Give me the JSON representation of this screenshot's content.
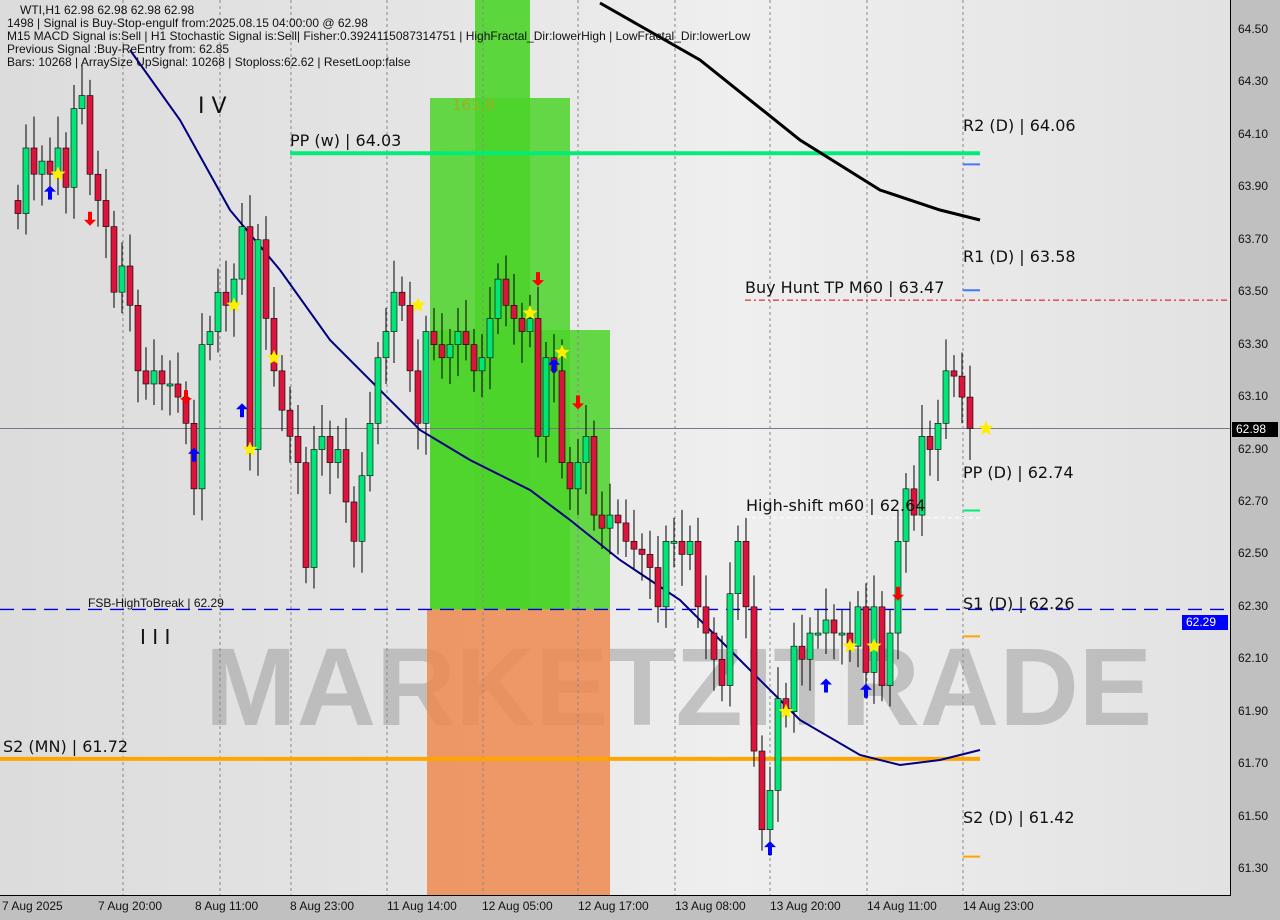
{
  "header": {
    "symbol_line": "WTI,H1  62.98 62.98 62.98 62.98",
    "line1": "1498 | Signal is Buy-Stop-engulf from:2025.08.15 04:00:00 @ 62.98",
    "line2": "M15 MACD Signal is:Sell | H1 Stochastic Signal is:Sell| Fisher:0.3924115087314751 | HighFractal_Dir:lowerHigh | LowFractal_Dir:lowerLow",
    "line3": "Previous Signal :Buy-ReEntry from: 62.85",
    "line4": "Bars: 10268 | ArraySize UpSignal: 10268 | Stoploss:62.62 | ResetLoop:false"
  },
  "levels": {
    "pp_w": {
      "label": "PP (w) | 64.03",
      "price": 64.03,
      "color": "#00ee77"
    },
    "s2_mn": {
      "label": "S2 (MN) | 61.72",
      "price": 61.72,
      "color": "#ffa500"
    },
    "fsb": {
      "label": "FSB-HighToBreak | 62.29",
      "price": 62.29,
      "color": "#0000dd"
    },
    "buy_hunt": {
      "label": "Buy Hunt TP M60 | 63.47",
      "price": 63.47,
      "color": "#dd0000"
    },
    "high_shift": {
      "label": "High-shift m60 | 62.64",
      "price": 62.64
    },
    "r2_d": {
      "label": "R2 (D) | 64.06",
      "price": 64.06
    },
    "r1_d": {
      "label": "R1 (D) | 63.58",
      "price": 63.58
    },
    "pp_d": {
      "label": "PP (D) | 62.74",
      "price": 62.74
    },
    "s1_d": {
      "label": "S1 (D) | 62.26",
      "price": 62.26
    },
    "s2_d": {
      "label": "S2 (D) | 61.42",
      "price": 61.42
    }
  },
  "labels": {
    "wave4": "I V",
    "wave3": "I I I",
    "fib": "161.8",
    "watermark": "MARKETZITRADE"
  },
  "price_tags": {
    "current": "62.98",
    "fsb": "62.29"
  },
  "colors": {
    "bull": "#00e676",
    "bear": "#dc143c",
    "ma": "#000080",
    "ma_long": "#000000",
    "zone_green": "#4cd42a",
    "zone_orange": "#f08a50"
  },
  "chart_data": {
    "type": "candlestick",
    "symbol": "WTI",
    "timeframe": "H1",
    "ylim": [
      61.2,
      64.6
    ],
    "yticks": [
      "64.50",
      "64.30",
      "64.10",
      "63.90",
      "63.70",
      "63.50",
      "63.30",
      "63.10",
      "62.90",
      "62.70",
      "62.50",
      "62.30",
      "62.10",
      "61.90",
      "61.70",
      "61.50",
      "61.30"
    ],
    "xticks": [
      "7 Aug 2025",
      "7 Aug 20:00",
      "8 Aug 11:00",
      "8 Aug 23:00",
      "11 Aug 14:00",
      "12 Aug 05:00",
      "12 Aug 17:00",
      "13 Aug 08:00",
      "13 Aug 20:00",
      "14 Aug 11:00",
      "14 Aug 23:00"
    ],
    "closes": [
      63.8,
      64.05,
      63.95,
      64.0,
      63.95,
      64.05,
      63.9,
      64.2,
      64.25,
      63.95,
      63.85,
      63.75,
      63.5,
      63.6,
      63.45,
      63.2,
      63.15,
      63.2,
      63.15,
      63.15,
      63.1,
      63.0,
      62.75,
      63.3,
      63.35,
      63.5,
      63.45,
      63.55,
      63.75,
      62.9,
      63.7,
      63.4,
      63.2,
      63.05,
      62.95,
      62.85,
      62.45,
      62.9,
      62.95,
      62.85,
      62.9,
      62.7,
      62.55,
      62.8,
      63.0,
      63.25,
      63.35,
      63.5,
      63.45,
      63.2,
      63.0,
      63.35,
      63.3,
      63.25,
      63.3,
      63.35,
      63.3,
      63.2,
      63.25,
      63.4,
      63.55,
      63.45,
      63.4,
      63.35,
      63.4,
      62.95,
      63.25,
      63.2,
      62.85,
      62.75,
      62.85,
      62.95,
      62.65,
      62.6,
      62.65,
      62.62,
      62.55,
      62.52,
      62.5,
      62.45,
      62.3,
      62.55,
      62.55,
      62.5,
      62.55,
      62.3,
      62.2,
      62.1,
      62.0,
      62.35,
      62.55,
      62.3,
      61.75,
      61.45,
      61.6,
      61.95,
      61.9,
      62.15,
      62.1,
      62.2,
      62.2,
      62.25,
      62.2,
      62.2,
      62.15,
      62.3,
      62.05,
      62.3,
      62.0,
      62.2,
      62.55,
      62.75,
      62.65,
      62.95,
      62.9,
      63.0,
      63.2,
      63.18,
      63.1,
      62.98
    ],
    "signals": [
      {
        "type": "star",
        "bar": 5,
        "price": 63.95
      },
      {
        "type": "up",
        "bar": 4,
        "price": 63.88
      },
      {
        "type": "down",
        "bar": 9,
        "price": 63.78
      },
      {
        "type": "star",
        "bar": 27,
        "price": 63.45
      },
      {
        "type": "star",
        "bar": 29,
        "price": 62.9
      },
      {
        "type": "star",
        "bar": 32,
        "price": 63.25
      },
      {
        "type": "up",
        "bar": 22,
        "price": 62.88
      },
      {
        "type": "up",
        "bar": 28,
        "price": 63.05
      },
      {
        "type": "down",
        "bar": 21,
        "price": 63.1
      },
      {
        "type": "star",
        "bar": 50,
        "price": 63.45
      },
      {
        "type": "star",
        "bar": 64,
        "price": 63.42
      },
      {
        "type": "star",
        "bar": 68,
        "price": 63.27
      },
      {
        "type": "down",
        "bar": 65,
        "price": 63.55
      },
      {
        "type": "up",
        "bar": 67,
        "price": 63.22
      },
      {
        "type": "down",
        "bar": 70,
        "price": 63.08
      },
      {
        "type": "star",
        "bar": 96,
        "price": 61.9
      },
      {
        "type": "star",
        "bar": 104,
        "price": 62.15
      },
      {
        "type": "star",
        "bar": 107,
        "price": 62.15
      },
      {
        "type": "up",
        "bar": 101,
        "price": 62.0
      },
      {
        "type": "up",
        "bar": 106,
        "price": 61.98
      },
      {
        "type": "down",
        "bar": 110,
        "price": 62.35
      },
      {
        "type": "star",
        "bar": 121,
        "price": 62.98
      },
      {
        "type": "up",
        "bar": 94,
        "price": 61.38
      }
    ]
  }
}
